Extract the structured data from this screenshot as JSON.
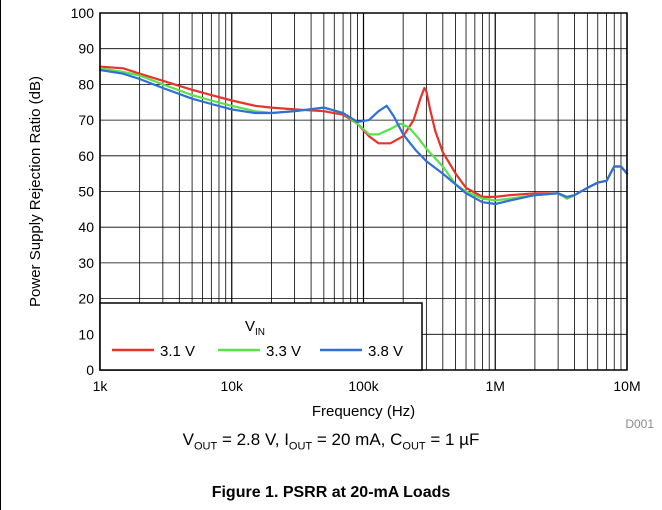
{
  "chart_data": {
    "type": "line",
    "title": "",
    "xlabel": "Frequency (Hz)",
    "ylabel": "Power Supply Rejection Ratio (dB)",
    "xscale": "log",
    "xlim": [
      1000,
      10000000
    ],
    "ylim": [
      0,
      100
    ],
    "x_ticks": [
      {
        "value": 1000,
        "label": "1k"
      },
      {
        "value": 10000,
        "label": "10k"
      },
      {
        "value": 100000,
        "label": "100k"
      },
      {
        "value": 1000000,
        "label": "1M"
      },
      {
        "value": 10000000,
        "label": "10M"
      }
    ],
    "y_ticks": [
      0,
      10,
      20,
      30,
      40,
      50,
      60,
      70,
      80,
      90,
      100
    ],
    "grid": true,
    "legend": {
      "title_main": "V",
      "title_sub": "IN",
      "placement": "bottom-left"
    },
    "series": [
      {
        "name": "3.1 V",
        "color": "#e8332a",
        "x": [
          1000,
          1500,
          2000,
          3000,
          5000,
          7000,
          10000,
          15000,
          20000,
          30000,
          50000,
          70000,
          90000,
          110000,
          130000,
          160000,
          200000,
          240000,
          270000,
          290000,
          300000,
          320000,
          350000,
          400000,
          500000,
          600000,
          800000,
          1000000,
          1300000,
          2000000,
          3000000,
          3500000,
          4000000,
          5000000,
          6000000,
          7000000,
          8000000,
          9000000,
          10000000
        ],
        "y": [
          85,
          84.5,
          83,
          81,
          78.5,
          77,
          75.5,
          74,
          73.5,
          73,
          72.5,
          71.5,
          69,
          65.5,
          63.5,
          63.5,
          65.5,
          70,
          76,
          79,
          78,
          73,
          67,
          61,
          55,
          51,
          48.5,
          48.5,
          49,
          49.5,
          49.5,
          48,
          49,
          51,
          52.5,
          53,
          57,
          57,
          55
        ]
      },
      {
        "name": "3.3 V",
        "color": "#59e04a",
        "x": [
          1000,
          1500,
          2000,
          3000,
          5000,
          7000,
          10000,
          15000,
          20000,
          30000,
          50000,
          70000,
          90000,
          110000,
          130000,
          160000,
          190000,
          220000,
          260000,
          300000,
          400000,
          500000,
          600000,
          800000,
          1000000,
          1300000,
          2000000,
          3000000,
          3500000,
          4000000,
          5000000,
          6000000,
          7000000,
          8000000,
          9000000,
          10000000
        ],
        "y": [
          84.5,
          83.5,
          82.5,
          80,
          77,
          75.5,
          74,
          72.5,
          72,
          72.5,
          73.5,
          72,
          69,
          66,
          66,
          67.5,
          69,
          68,
          65,
          62,
          57,
          52,
          50,
          48,
          47.5,
          48,
          49,
          49.5,
          48,
          49,
          51,
          52.5,
          53,
          57,
          57,
          55
        ]
      },
      {
        "name": "3.8 V",
        "color": "#2f6fd6",
        "x": [
          1000,
          1500,
          2000,
          3000,
          5000,
          7000,
          10000,
          15000,
          20000,
          30000,
          50000,
          70000,
          90000,
          110000,
          130000,
          150000,
          170000,
          200000,
          250000,
          300000,
          400000,
          500000,
          600000,
          800000,
          1000000,
          1300000,
          2000000,
          3000000,
          3500000,
          4000000,
          5000000,
          6000000,
          7000000,
          8000000,
          9000000,
          10000000
        ],
        "y": [
          84,
          83,
          81.5,
          79,
          76,
          74.5,
          73,
          72,
          72,
          72.5,
          73.5,
          72,
          69.5,
          70,
          72.5,
          74,
          71,
          66,
          61.5,
          58.5,
          55,
          52,
          49.5,
          47,
          46.5,
          47.5,
          49,
          49.5,
          48.5,
          49,
          51,
          52.5,
          53,
          57,
          57,
          55
        ]
      }
    ],
    "annotation": "D001"
  },
  "conditions": {
    "v_main": "V",
    "v_sub": "OUT",
    "v_rest": " = 2.8 V, ",
    "i_main": "I",
    "i_sub": "OUT",
    "i_rest": " = 20 mA, ",
    "c_main": "C",
    "c_sub": "OUT",
    "c_rest": " = 1 µF"
  },
  "figure_title": "Figure 1. PSRR at 20-mA Loads"
}
